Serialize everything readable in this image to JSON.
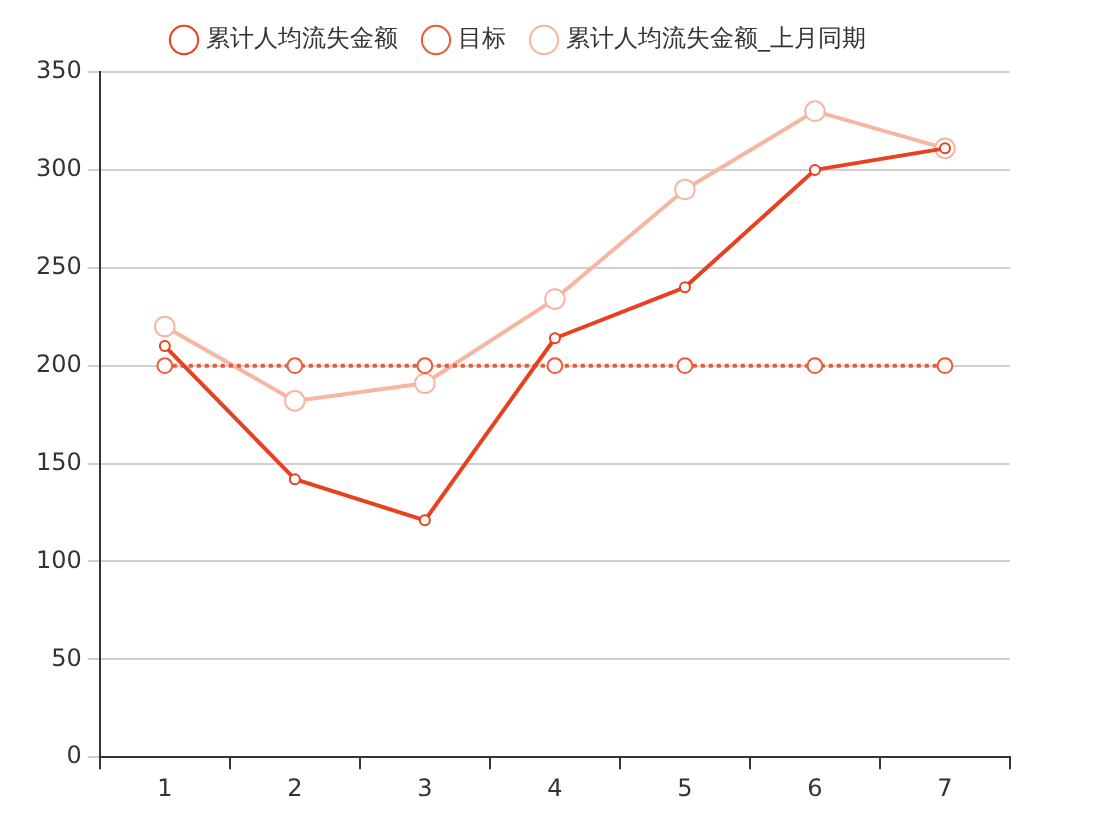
{
  "chart_data": {
    "type": "line",
    "categories": [
      "1",
      "2",
      "3",
      "4",
      "5",
      "6",
      "7"
    ],
    "series": [
      {
        "name": "累计人均流失金额",
        "color": "#e8411f",
        "values": [
          210,
          142,
          121,
          214,
          240,
          300,
          311
        ]
      },
      {
        "name": "目标",
        "color": "#ec5a36",
        "line_style": "dotted",
        "values": [
          200,
          200,
          200,
          200,
          200,
          200,
          200
        ]
      },
      {
        "name": "累计人均流失金额_上月同期",
        "color": "#f6b6a2",
        "values": [
          220,
          182,
          191,
          234,
          290,
          330,
          311
        ]
      }
    ],
    "ylim": [
      0,
      350
    ],
    "yticks": [
      0,
      50,
      100,
      150,
      200,
      250,
      300,
      350
    ],
    "grid": "y",
    "legend": "top",
    "marker": "circle",
    "line_style": "solid"
  }
}
